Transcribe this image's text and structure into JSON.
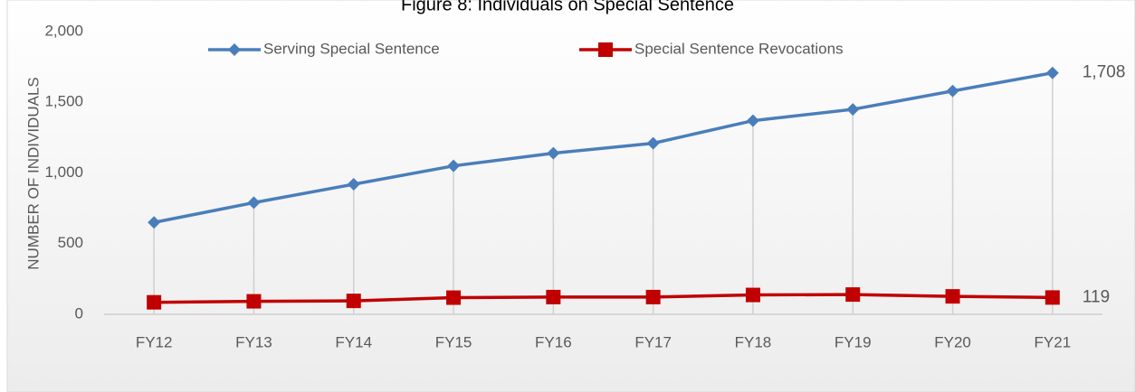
{
  "chart_data": {
    "type": "line",
    "title": "Figure 8: Individuals on Special Sentence",
    "y_label": "NUMBER OF INDIVIDUALS",
    "categories": [
      "FY12",
      "FY13",
      "FY14",
      "FY15",
      "FY16",
      "FY17",
      "FY18",
      "FY19",
      "FY20",
      "FY21"
    ],
    "series": [
      {
        "name": "Serving Special Sentence",
        "color": "#4a7ebb",
        "marker": "diamond",
        "values": [
          650,
          790,
          920,
          1050,
          1140,
          1210,
          1370,
          1450,
          1580,
          1708
        ],
        "value_labels": [
          null,
          null,
          null,
          null,
          null,
          null,
          null,
          null,
          null,
          "1,708"
        ]
      },
      {
        "name": "Special Sentence Revocations",
        "color": "#c00000",
        "marker": "square",
        "values": [
          85,
          92,
          95,
          118,
          122,
          122,
          137,
          140,
          127,
          119
        ],
        "value_labels": [
          null,
          null,
          null,
          null,
          null,
          null,
          null,
          null,
          null,
          119
        ]
      }
    ],
    "ylim": [
      0,
      2000
    ],
    "yticks": [
      0,
      {
        "value": 500,
        "label": "500"
      },
      {
        "value": 1000,
        "label": "1,000"
      },
      {
        "value": 1500,
        "label": "1,500"
      },
      {
        "value": 2000,
        "label": "2,000"
      }
    ],
    "drop_lines": true,
    "legend": "top"
  }
}
